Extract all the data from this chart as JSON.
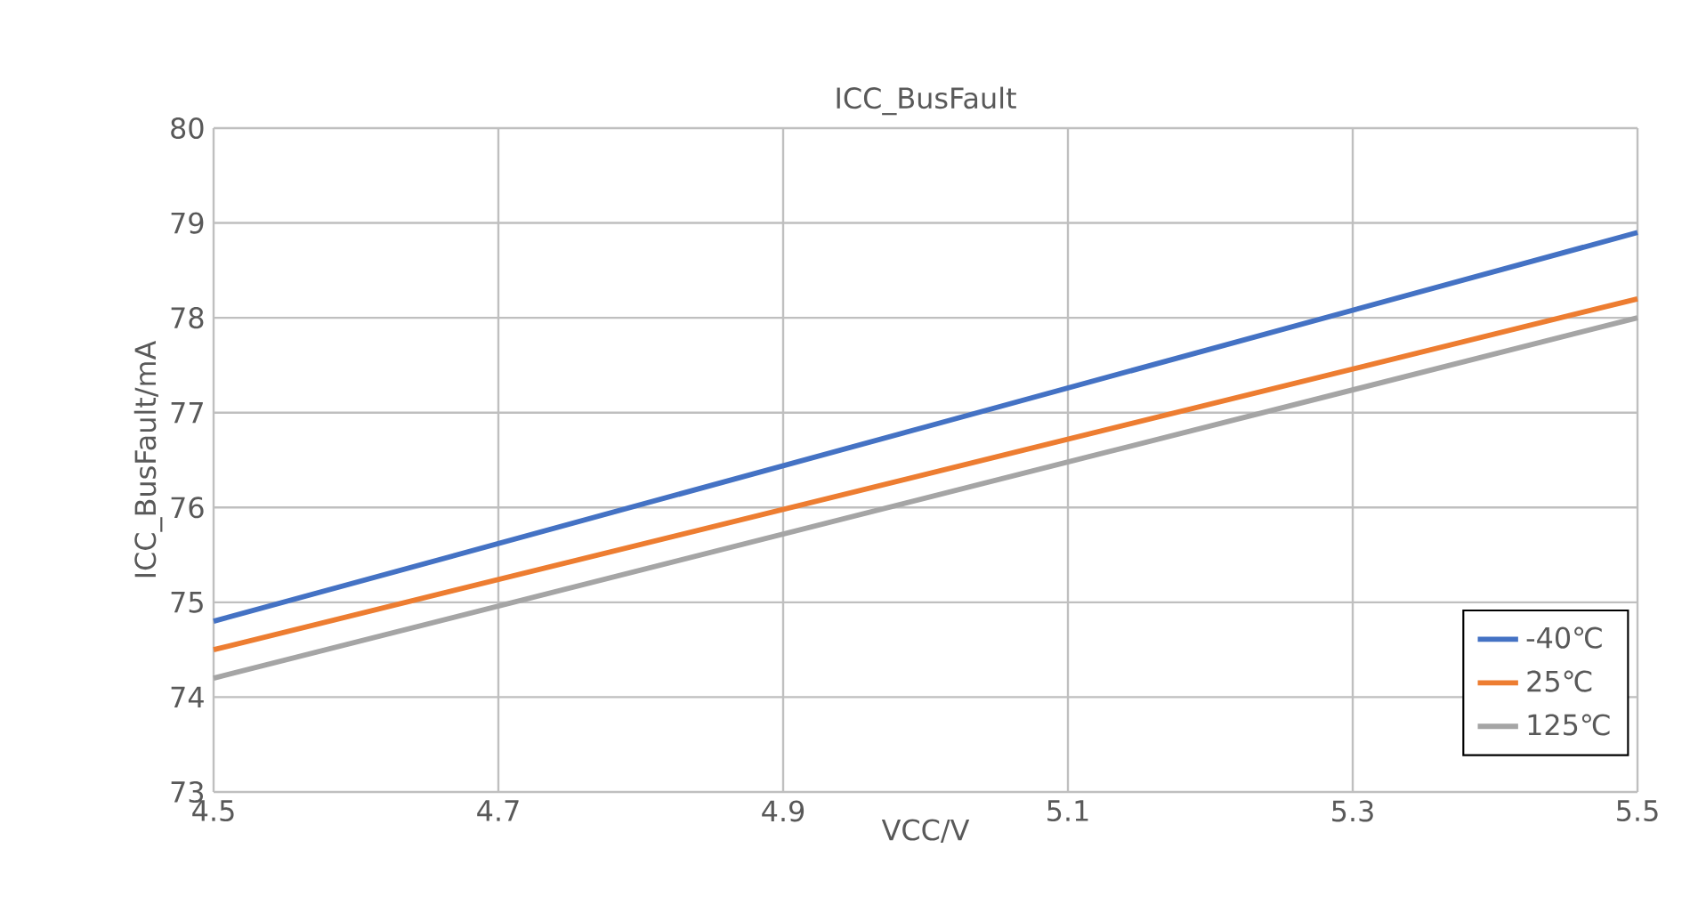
{
  "chart_data": {
    "type": "line",
    "title": "ICC_BusFault",
    "xlabel": "VCC/V",
    "ylabel": "ICC_BusFault/mA",
    "xlim": [
      4.5,
      5.5
    ],
    "xticks": [
      4.5,
      4.7,
      4.9,
      5.1,
      5.3,
      5.5
    ],
    "ylim": [
      73,
      80
    ],
    "yticks": [
      73,
      74,
      75,
      76,
      77,
      78,
      79,
      80
    ],
    "x": [
      4.5,
      5.0,
      5.5
    ],
    "series": [
      {
        "name": "-40℃",
        "color": "#4472c4",
        "values": [
          74.8,
          76.85,
          78.9
        ]
      },
      {
        "name": "25℃",
        "color": "#ed7d31",
        "values": [
          74.5,
          76.35,
          78.2
        ]
      },
      {
        "name": "125℃",
        "color": "#a5a5a5",
        "values": [
          74.2,
          76.1,
          78.0
        ]
      }
    ],
    "grid": true,
    "legend": "bottom right"
  }
}
